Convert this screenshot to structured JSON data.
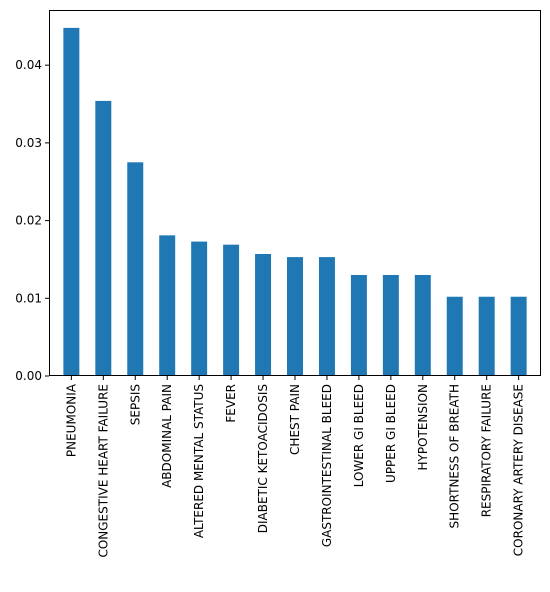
{
  "chart_data": {
    "type": "bar",
    "categories": [
      "PNEUMONIA",
      "CONGESTIVE HEART FAILURE",
      "SEPSIS",
      "ABDOMINAL PAIN",
      "ALTERED MENTAL STATUS",
      "FEVER",
      "DIABETIC KETOACIDOSIS",
      "CHEST PAIN",
      "GASTROINTESTINAL BLEED",
      "LOWER GI BLEED",
      "UPPER GI BLEED",
      "HYPOTENSION",
      "SHORTNESS OF BREATH",
      "RESPIRATORY FAILURE",
      "CORONARY ARTERY DISEASE"
    ],
    "values": [
      0.0448,
      0.0354,
      0.0275,
      0.0181,
      0.0173,
      0.0169,
      0.0157,
      0.0153,
      0.0153,
      0.013,
      0.013,
      0.013,
      0.0102,
      0.0102,
      0.0102
    ],
    "ylim": [
      0,
      0.0471
    ],
    "yticks": [
      "0.00",
      "0.01",
      "0.02",
      "0.03",
      "0.04"
    ],
    "ytick_values": [
      0,
      0.01,
      0.02,
      0.03,
      0.04
    ],
    "bar_color": "#1f77b4",
    "title": "",
    "xlabel": "",
    "ylabel": "",
    "grid": false,
    "legend": false
  }
}
